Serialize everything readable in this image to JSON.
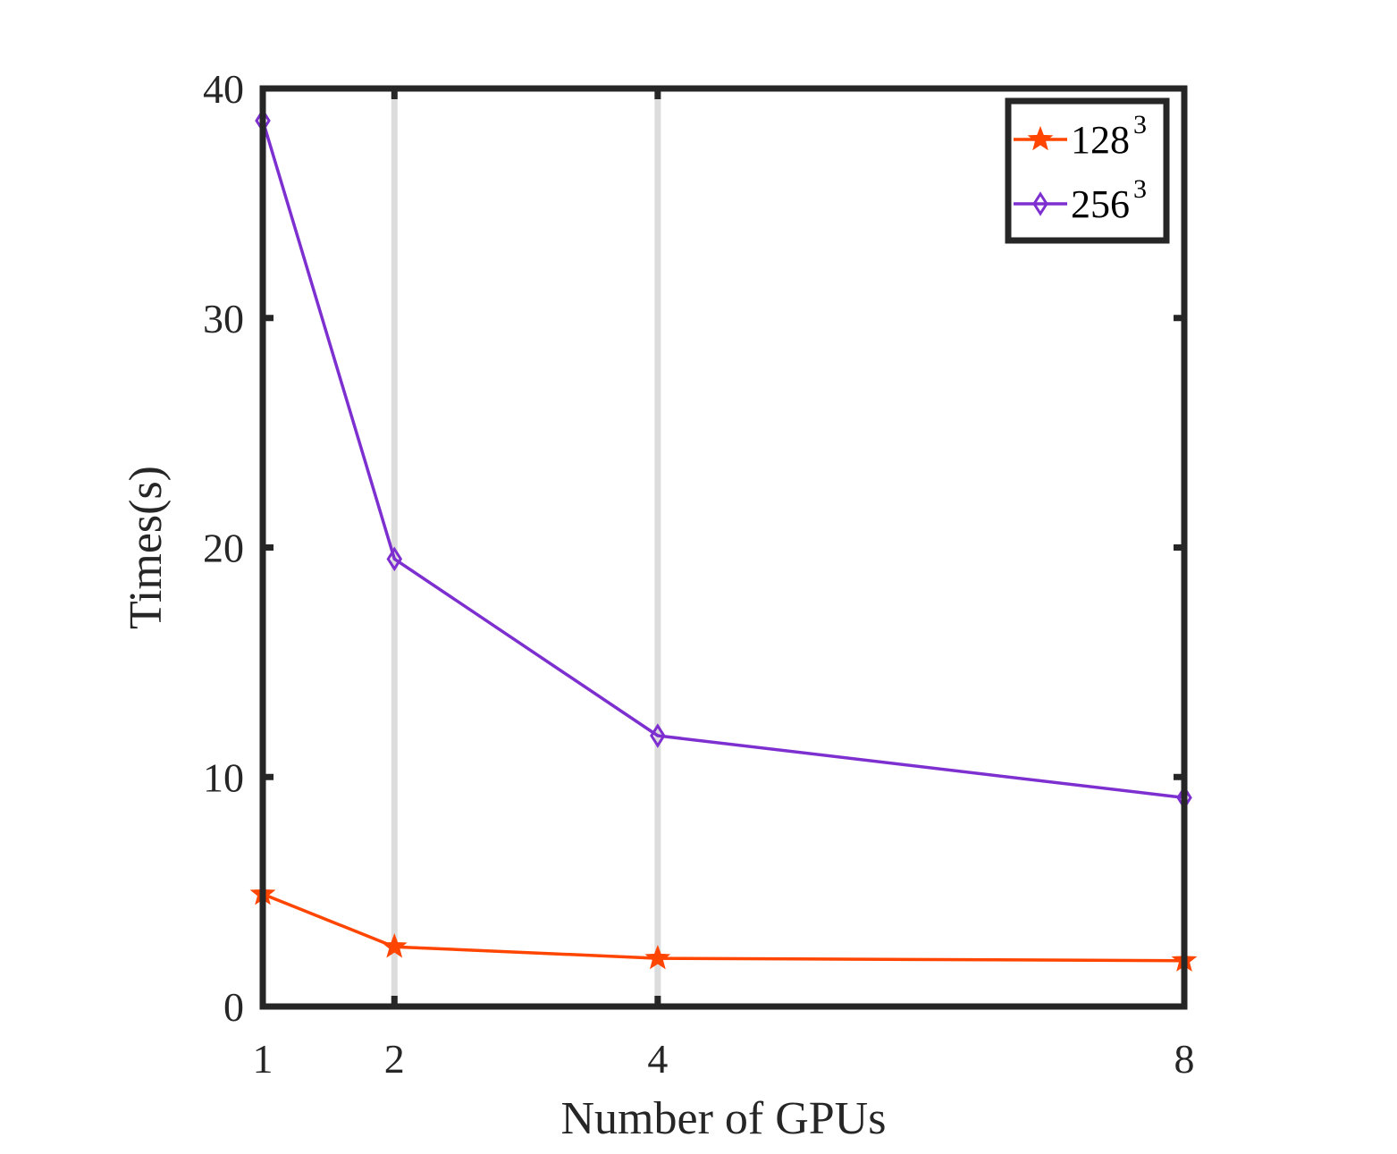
{
  "chart_data": {
    "type": "line",
    "title": "",
    "xlabel": "Number of GPUs",
    "ylabel": "Times(s)",
    "x": [
      1,
      2,
      4,
      8
    ],
    "x_tick_labels": [
      "1",
      "2",
      "4",
      "8"
    ],
    "xlim": [
      1,
      8
    ],
    "ylim": [
      0,
      40
    ],
    "y_ticks": [
      0,
      10,
      20,
      30,
      40
    ],
    "y_tick_labels": [
      "0",
      "10",
      "20",
      "30",
      "40"
    ],
    "grid": "vertical lines at x = 2 and 4",
    "legend_position": "top-right",
    "series": [
      {
        "name": "128",
        "name_superscript": "3",
        "values": [
          4.9,
          2.6,
          2.1,
          2.0
        ],
        "color": "#ff4500",
        "marker": "star"
      },
      {
        "name": "256",
        "name_superscript": "3",
        "values": [
          38.6,
          19.5,
          11.8,
          9.1
        ],
        "color": "#7e2fd0",
        "marker": "diamond"
      }
    ]
  }
}
